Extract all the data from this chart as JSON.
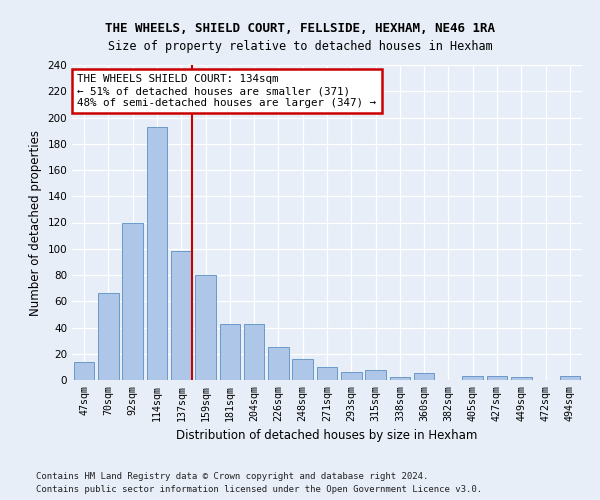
{
  "title1": "THE WHEELS, SHIELD COURT, FELLSIDE, HEXHAM, NE46 1RA",
  "title2": "Size of property relative to detached houses in Hexham",
  "xlabel": "Distribution of detached houses by size in Hexham",
  "ylabel": "Number of detached properties",
  "categories": [
    "47sqm",
    "70sqm",
    "92sqm",
    "114sqm",
    "137sqm",
    "159sqm",
    "181sqm",
    "204sqm",
    "226sqm",
    "248sqm",
    "271sqm",
    "293sqm",
    "315sqm",
    "338sqm",
    "360sqm",
    "382sqm",
    "405sqm",
    "427sqm",
    "449sqm",
    "472sqm",
    "494sqm"
  ],
  "values": [
    14,
    66,
    120,
    193,
    98,
    80,
    43,
    43,
    25,
    16,
    10,
    6,
    8,
    2,
    5,
    0,
    3,
    3,
    2,
    0,
    3
  ],
  "bar_color": "#aec6e8",
  "bar_edge_color": "#5a8fc2",
  "vline_x_index": 4,
  "annotation_text": "THE WHEELS SHIELD COURT: 134sqm\n← 51% of detached houses are smaller (371)\n48% of semi-detached houses are larger (347) →",
  "annotation_box_color": "#ffffff",
  "annotation_box_edge": "#cc0000",
  "vline_color": "#cc0000",
  "footer1": "Contains HM Land Registry data © Crown copyright and database right 2024.",
  "footer2": "Contains public sector information licensed under the Open Government Licence v3.0.",
  "bg_color": "#e8eef8",
  "ylim": [
    0,
    240
  ],
  "yticks": [
    0,
    20,
    40,
    60,
    80,
    100,
    120,
    140,
    160,
    180,
    200,
    220,
    240
  ]
}
